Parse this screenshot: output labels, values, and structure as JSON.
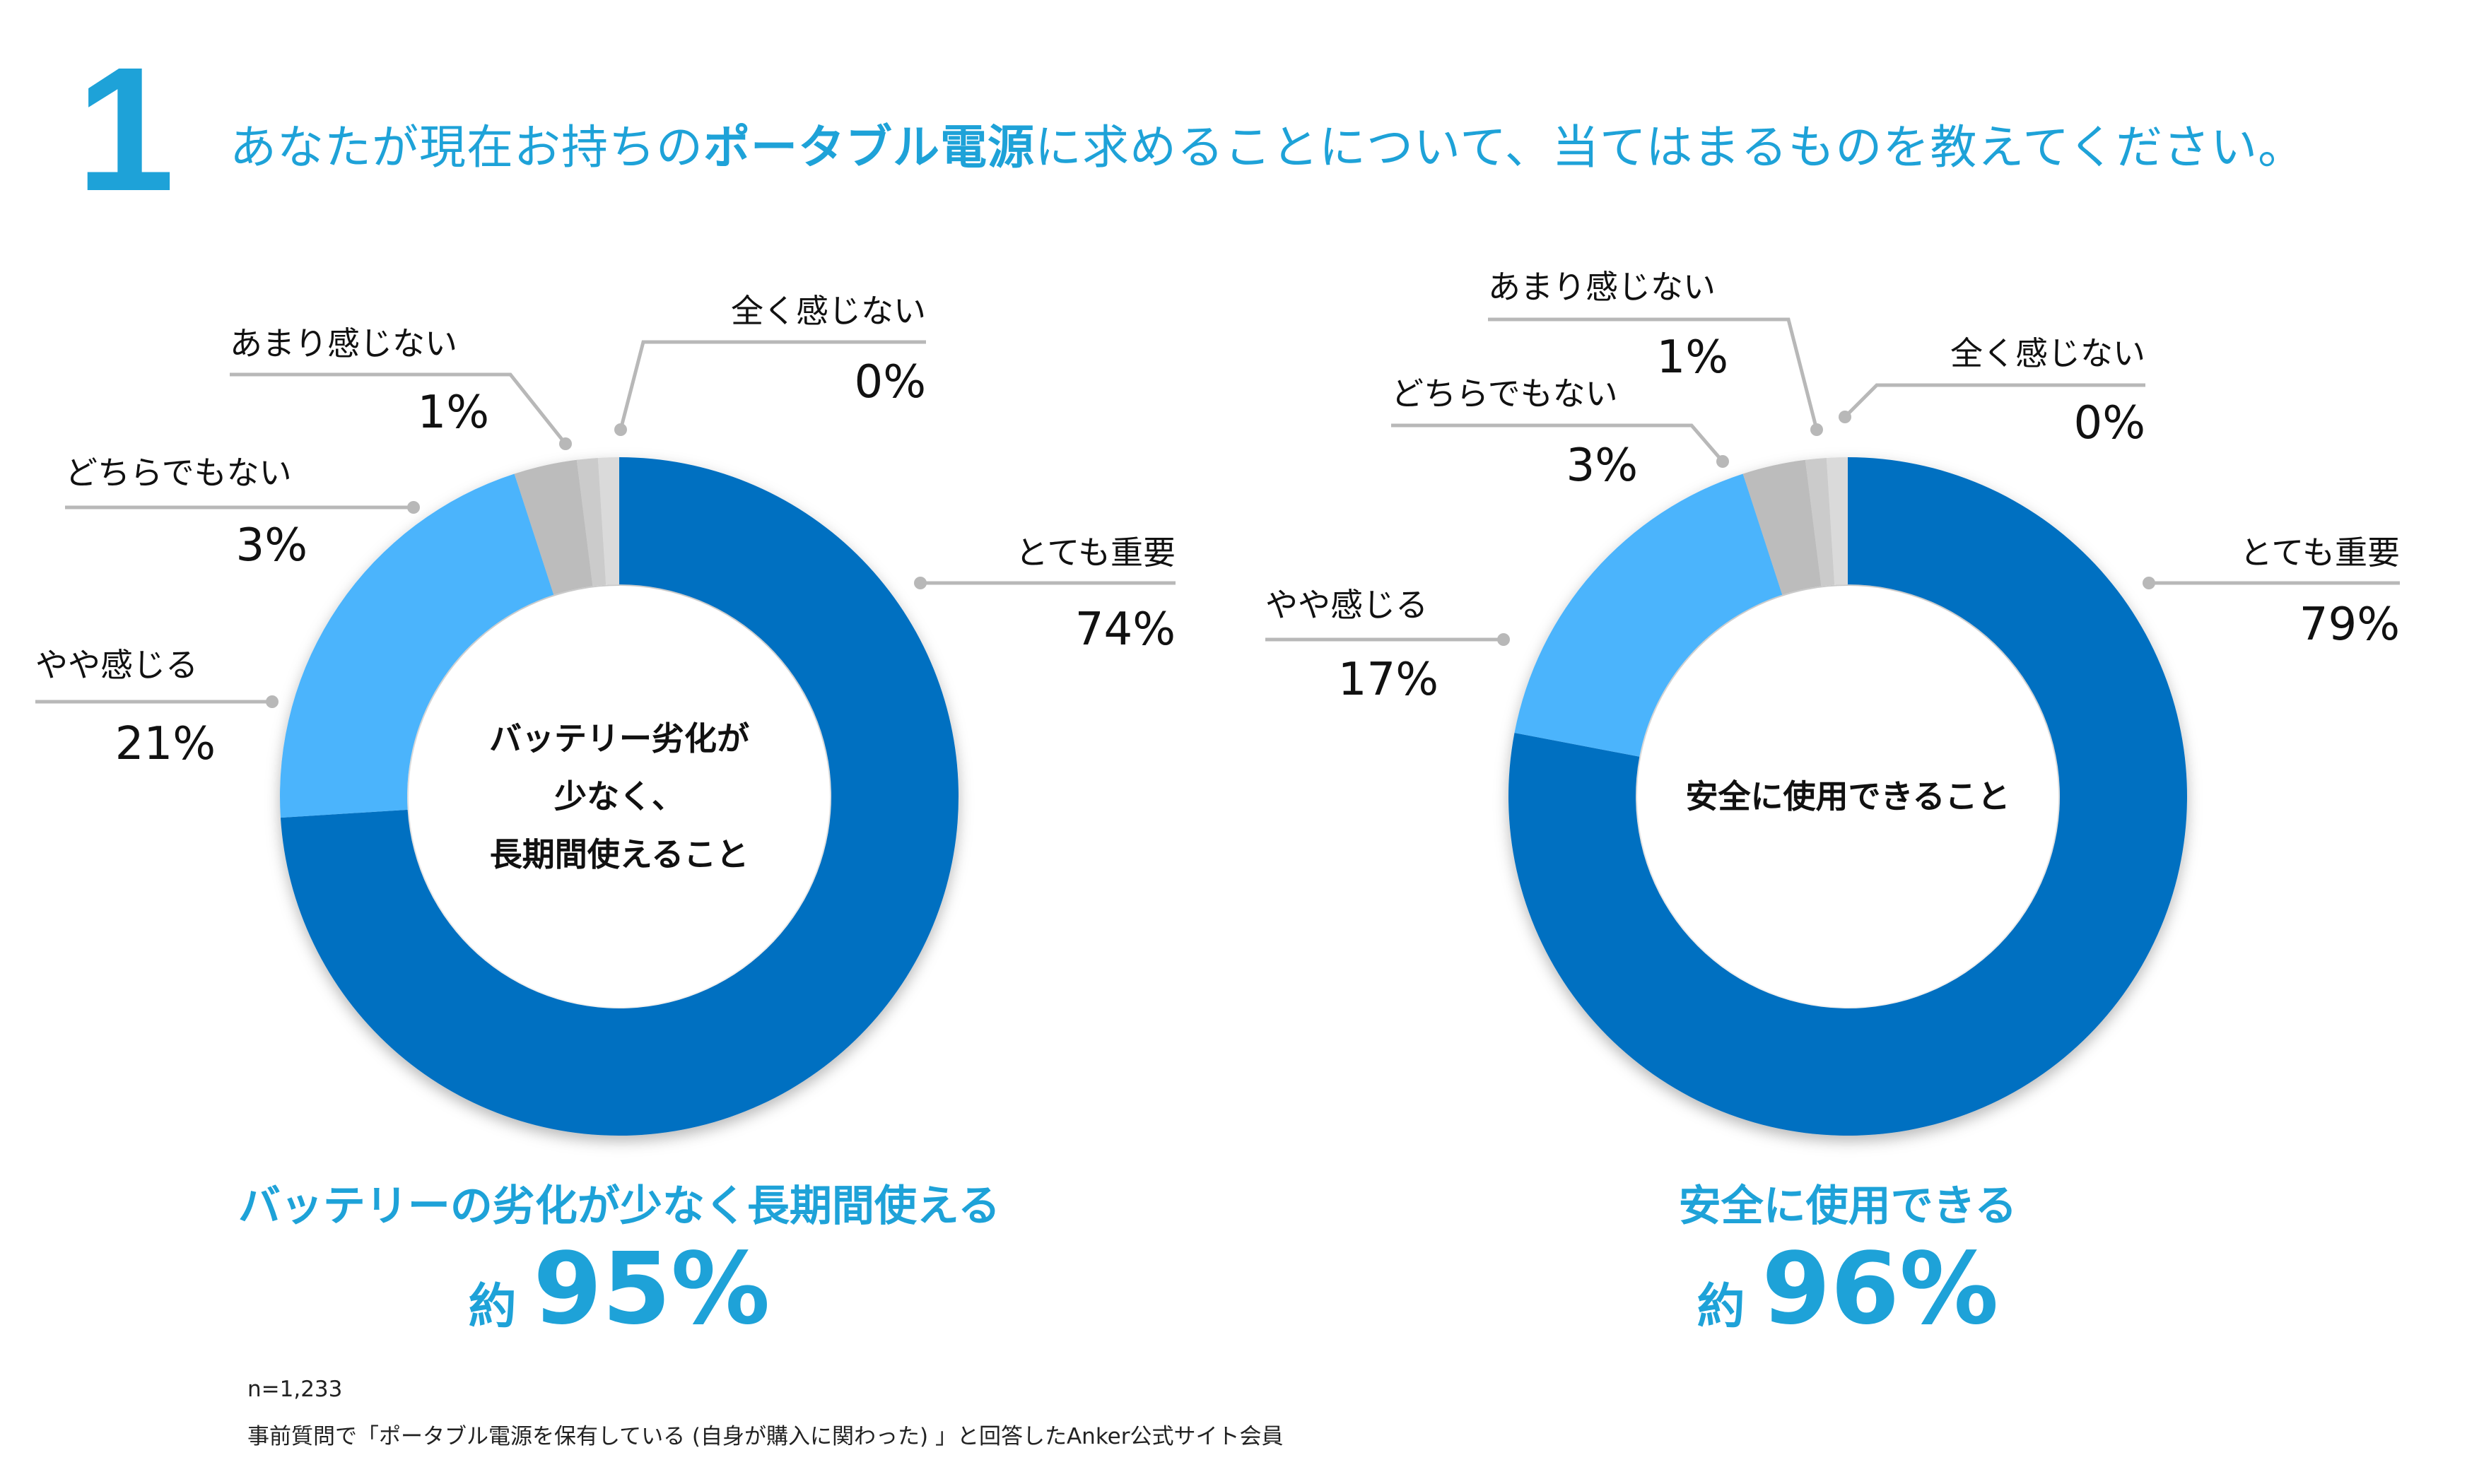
{
  "question": {
    "number": "1",
    "text_before": "あなたが現在お持ちの",
    "text_bold": "ポータブル電源",
    "text_after": "に求めることについて、当てはまるものを教えてください。"
  },
  "colors": {
    "brand": "#1ea2d8",
    "very_important": "#0570c1",
    "somewhat": "#4cb4fc",
    "neutral": "#bcbcbc",
    "not_much": "#cbcbcb",
    "not_at_all": "#dadada",
    "leader": "#b8b8b8"
  },
  "chart_data": [
    {
      "type": "pie",
      "title": "バッテリーの劣化が少なく長期間使える",
      "center_label": [
        "バッテリー劣化が",
        "少なく、",
        "長期間使えること"
      ],
      "summary_prefix": "約",
      "summary_value": "95%",
      "categories": [
        "とても重要",
        "やや感じる",
        "どちらでもない",
        "あまり感じない",
        "全く感じない"
      ],
      "values": [
        74,
        21,
        3,
        1,
        0
      ],
      "value_labels": [
        "74%",
        "21%",
        "3%",
        "1%",
        "0%"
      ]
    },
    {
      "type": "pie",
      "title": "安全に使用できる",
      "center_label": [
        "安全に使用できること"
      ],
      "summary_prefix": "約",
      "summary_value": "96%",
      "categories": [
        "とても重要",
        "やや感じる",
        "どちらでもない",
        "あまり感じない",
        "全く感じない"
      ],
      "values": [
        79,
        17,
        3,
        1,
        0
      ],
      "value_labels": [
        "79%",
        "17%",
        "3%",
        "1%",
        "0%"
      ]
    }
  ],
  "notes": {
    "sample_size": "n=1,233",
    "source": "事前質問で「ポータブル電源を保有している (自身が購入に関わった) 」と回答したAnker公式サイト会員"
  }
}
